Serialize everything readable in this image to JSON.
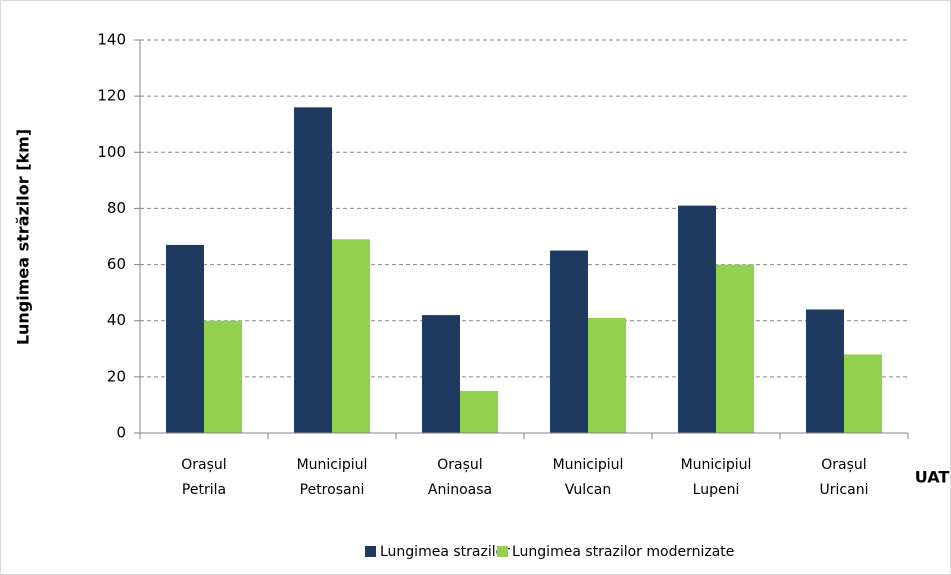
{
  "chart_data": {
    "type": "bar",
    "categories": [
      "Orașul Petrila",
      "Municipiul Petrosani",
      "Orașul Aninoasa",
      "Municipiul Vulcan",
      "Municipiul Lupeni",
      "Orașul Uricani"
    ],
    "series": [
      {
        "name": "Lungimea strazilor",
        "color": "#1f3a5f",
        "values": [
          67,
          116,
          42,
          65,
          81,
          44
        ]
      },
      {
        "name": "Lungimea strazilor modernizate",
        "color": "#92d050",
        "values": [
          40,
          69,
          15,
          41,
          60,
          28
        ]
      }
    ],
    "y_label": "Lungimea străzilor [km]",
    "x_label": "UAT",
    "ylim": [
      0,
      140
    ],
    "yticks": [
      0,
      20,
      40,
      60,
      80,
      100,
      120,
      140
    ],
    "grid": true,
    "legend": "bottom"
  }
}
